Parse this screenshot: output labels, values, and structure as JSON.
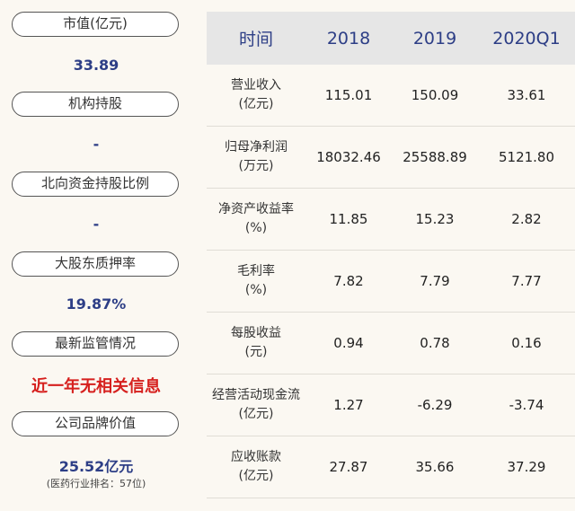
{
  "left": {
    "items": [
      {
        "label": "市值(亿元)",
        "value": "33.89"
      },
      {
        "label": "机构持股",
        "value": "-"
      },
      {
        "label": "北向资金持股比例",
        "value": "-"
      },
      {
        "label": "大股东质押率",
        "value": "19.87%"
      },
      {
        "label": "最新监管情况",
        "value": "近一年无相关信息"
      },
      {
        "label": "公司品牌价值",
        "value": "25.52亿元",
        "note": "(医药行业排名：57位)"
      }
    ]
  },
  "table": {
    "headers": [
      "时间",
      "2018",
      "2019",
      "2020Q1"
    ],
    "rows": [
      {
        "label1": "营业收入",
        "label2": "(亿元)",
        "values": [
          "115.01",
          "150.09",
          "33.61"
        ]
      },
      {
        "label1": "归母净利润",
        "label2": "(万元)",
        "values": [
          "18032.46",
          "25588.89",
          "5121.80"
        ]
      },
      {
        "label1": "净资产收益率",
        "label2": "(%)",
        "values": [
          "11.85",
          "15.23",
          "2.82"
        ]
      },
      {
        "label1": "毛利率",
        "label2": "(%)",
        "values": [
          "7.82",
          "7.79",
          "7.77"
        ]
      },
      {
        "label1": "每股收益",
        "label2": "(元)",
        "values": [
          "0.94",
          "0.78",
          "0.16"
        ]
      },
      {
        "label1": "经营活动现金流",
        "label2": "(亿元)",
        "values": [
          "1.27",
          "-6.29",
          "-3.74"
        ]
      },
      {
        "label1": "应收账款",
        "label2": "(亿元)",
        "values": [
          "27.87",
          "35.66",
          "37.29"
        ]
      }
    ]
  },
  "colors": {
    "background": "#fbf8f2",
    "value_blue": "#2d3e86",
    "value_red": "#d6201e",
    "header_bg": "#e6e6e6"
  }
}
